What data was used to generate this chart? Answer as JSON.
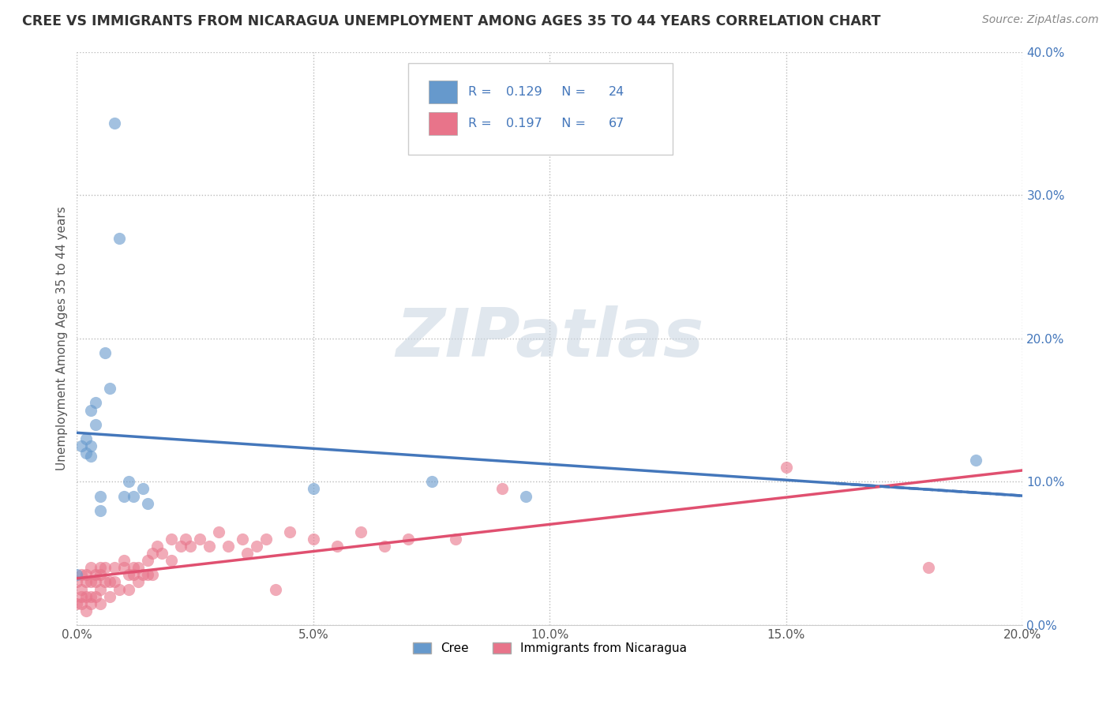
{
  "title": "CREE VS IMMIGRANTS FROM NICARAGUA UNEMPLOYMENT AMONG AGES 35 TO 44 YEARS CORRELATION CHART",
  "source": "Source: ZipAtlas.com",
  "ylabel": "Unemployment Among Ages 35 to 44 years",
  "cree_color": "#6699CC",
  "nicaragua_color": "#E8748A",
  "cree_line_color": "#4477BB",
  "nicaragua_line_color": "#E05070",
  "cree_R": 0.129,
  "cree_N": 24,
  "nicaragua_R": 0.197,
  "nicaragua_N": 67,
  "xlim": [
    0.0,
    0.2
  ],
  "ylim": [
    0.0,
    0.4
  ],
  "xticks": [
    0.0,
    0.05,
    0.1,
    0.15,
    0.2
  ],
  "yticks": [
    0.0,
    0.1,
    0.2,
    0.3,
    0.4
  ],
  "watermark": "ZIPatlas",
  "cree_x": [
    0.0,
    0.001,
    0.002,
    0.002,
    0.003,
    0.003,
    0.003,
    0.004,
    0.004,
    0.005,
    0.005,
    0.006,
    0.007,
    0.008,
    0.009,
    0.01,
    0.011,
    0.012,
    0.014,
    0.015,
    0.05,
    0.075,
    0.095,
    0.19
  ],
  "cree_y": [
    0.035,
    0.125,
    0.13,
    0.12,
    0.118,
    0.125,
    0.15,
    0.155,
    0.14,
    0.08,
    0.09,
    0.19,
    0.165,
    0.35,
    0.27,
    0.09,
    0.1,
    0.09,
    0.095,
    0.085,
    0.095,
    0.1,
    0.09,
    0.115
  ],
  "nicaragua_x": [
    0.0,
    0.0,
    0.001,
    0.001,
    0.001,
    0.001,
    0.002,
    0.002,
    0.002,
    0.002,
    0.003,
    0.003,
    0.003,
    0.003,
    0.004,
    0.004,
    0.004,
    0.005,
    0.005,
    0.005,
    0.005,
    0.006,
    0.006,
    0.007,
    0.007,
    0.008,
    0.008,
    0.009,
    0.01,
    0.01,
    0.011,
    0.011,
    0.012,
    0.012,
    0.013,
    0.013,
    0.014,
    0.015,
    0.015,
    0.016,
    0.016,
    0.017,
    0.018,
    0.02,
    0.02,
    0.022,
    0.023,
    0.024,
    0.026,
    0.028,
    0.03,
    0.032,
    0.035,
    0.036,
    0.038,
    0.04,
    0.042,
    0.045,
    0.05,
    0.055,
    0.06,
    0.065,
    0.07,
    0.08,
    0.09,
    0.15,
    0.18
  ],
  "nicaragua_y": [
    0.03,
    0.015,
    0.035,
    0.025,
    0.015,
    0.02,
    0.03,
    0.02,
    0.035,
    0.01,
    0.03,
    0.04,
    0.02,
    0.015,
    0.03,
    0.035,
    0.02,
    0.04,
    0.035,
    0.025,
    0.015,
    0.03,
    0.04,
    0.03,
    0.02,
    0.04,
    0.03,
    0.025,
    0.045,
    0.04,
    0.035,
    0.025,
    0.04,
    0.035,
    0.03,
    0.04,
    0.035,
    0.045,
    0.035,
    0.05,
    0.035,
    0.055,
    0.05,
    0.06,
    0.045,
    0.055,
    0.06,
    0.055,
    0.06,
    0.055,
    0.065,
    0.055,
    0.06,
    0.05,
    0.055,
    0.06,
    0.025,
    0.065,
    0.06,
    0.055,
    0.065,
    0.055,
    0.06,
    0.06,
    0.095,
    0.11,
    0.04
  ]
}
